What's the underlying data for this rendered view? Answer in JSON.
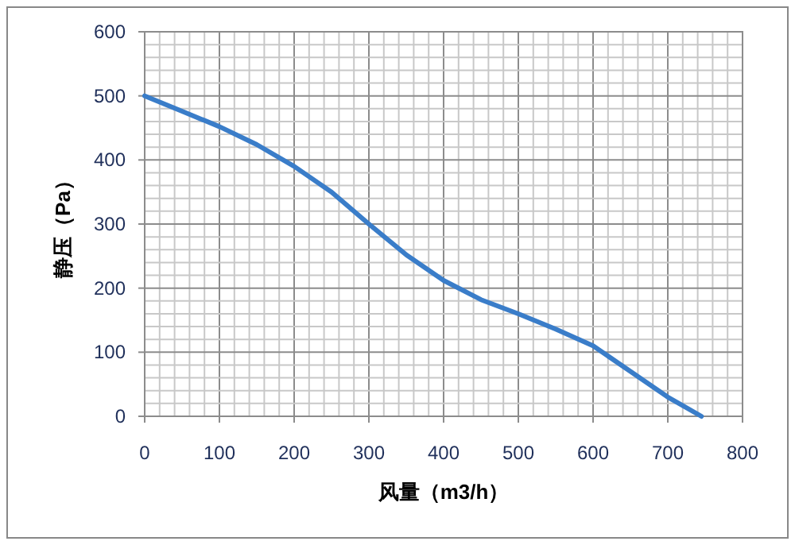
{
  "chart_data": {
    "type": "line",
    "xlabel": "风量（m3/h）",
    "ylabel": "静压（Pa）",
    "x": [
      0,
      50,
      100,
      150,
      200,
      250,
      300,
      350,
      400,
      450,
      500,
      550,
      600,
      650,
      700,
      745
    ],
    "series": [
      {
        "color": "#3a7dc9",
        "values": [
          500,
          476,
          452,
          424,
          390,
          350,
          300,
          252,
          212,
          182,
          160,
          136,
          110,
          70,
          30,
          0
        ]
      }
    ],
    "xlim": [
      0,
      800
    ],
    "xticks": [
      0,
      100,
      200,
      300,
      400,
      500,
      600,
      700,
      800
    ],
    "ylim": [
      0,
      600
    ],
    "yticks": [
      0,
      100,
      200,
      300,
      400,
      500,
      600
    ],
    "grid": true,
    "marker": "none",
    "line_style": "solid"
  }
}
